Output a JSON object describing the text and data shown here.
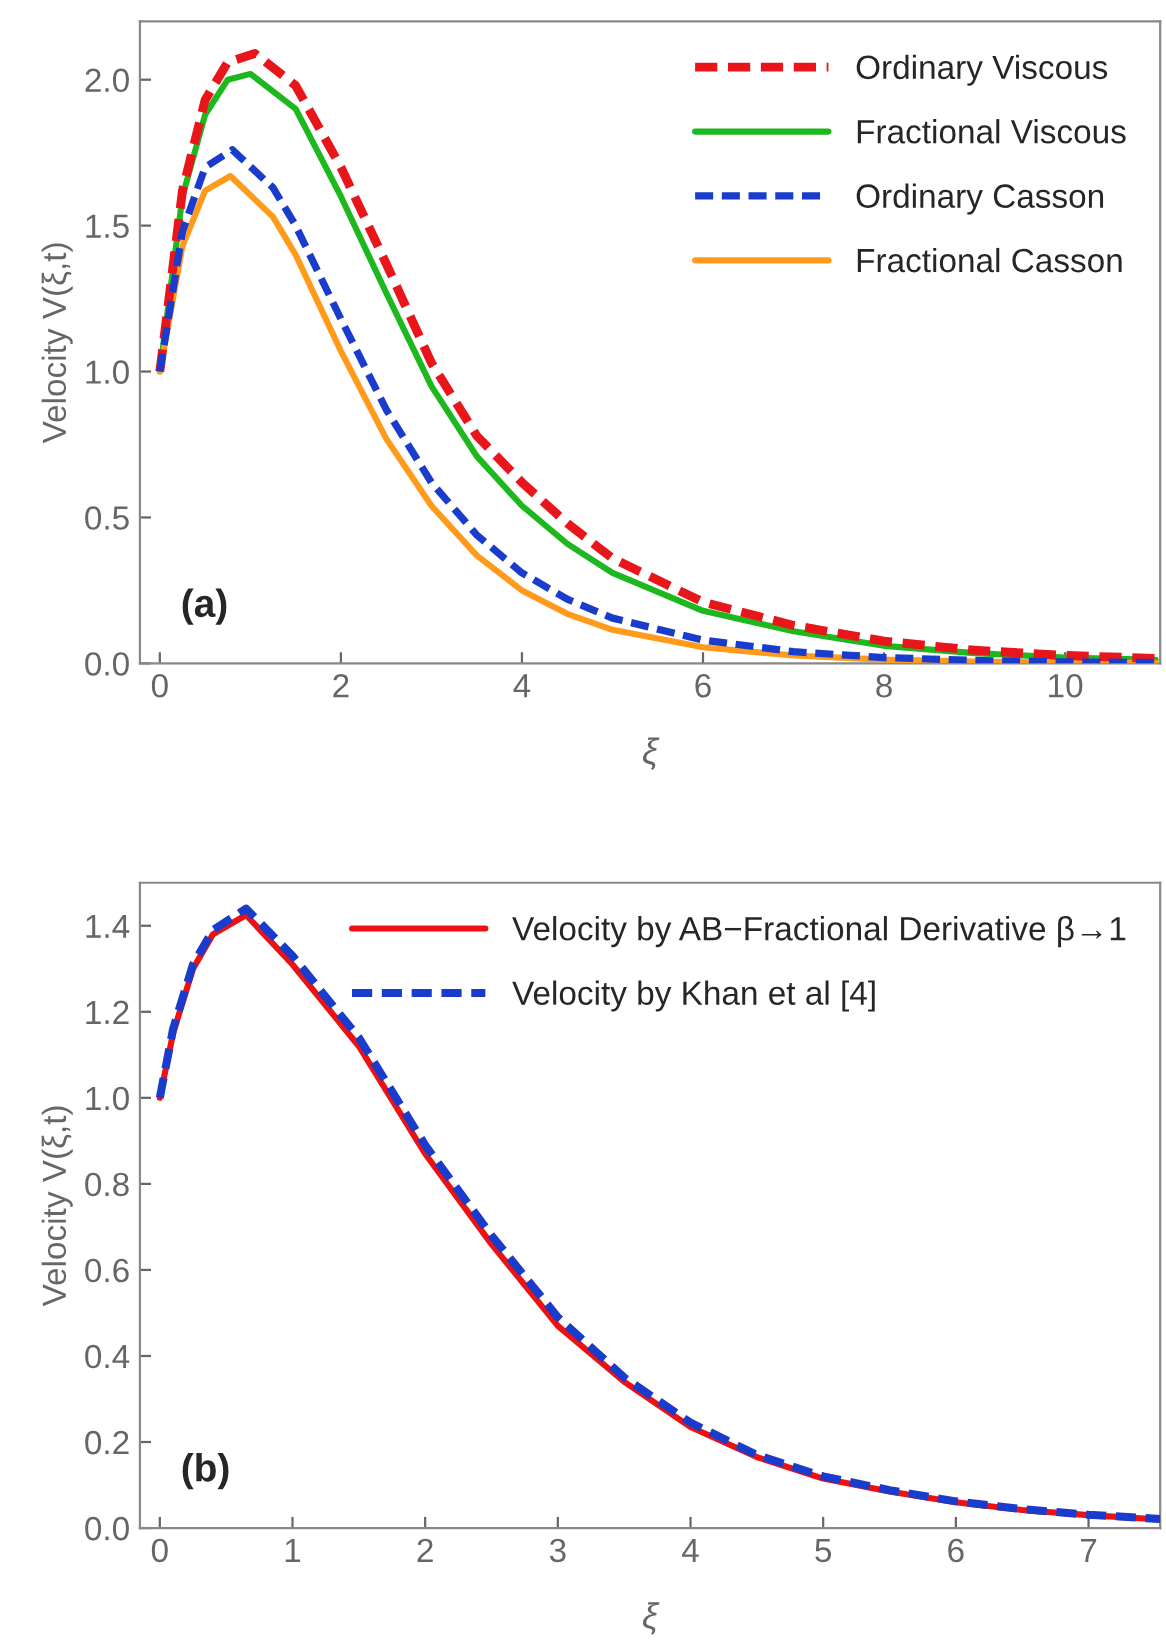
{
  "chart_data": [
    {
      "type": "line",
      "xlabel": "ξ",
      "ylabel": "Velocity V(ξ,t)",
      "annotations": [
        "(a)"
      ],
      "xlim": [
        -0.22,
        11.05
      ],
      "ylim": [
        0,
        2.2
      ],
      "xticks": [
        0,
        2,
        4,
        6,
        8,
        10
      ],
      "yticks": [
        {
          "value": 0,
          "label": "0.0"
        },
        {
          "value": 0.5,
          "label": "0.5"
        },
        {
          "value": 1,
          "label": "1.0"
        },
        {
          "value": 1.5,
          "label": "1.5"
        },
        {
          "value": 2,
          "label": "2.0"
        }
      ],
      "grid": false,
      "legend": "top right",
      "series": [
        {
          "name": "Ordinary Viscous",
          "color": "#e8161b",
          "line_style": "dashed",
          "x": [
            0,
            0.25,
            0.5,
            0.75,
            1.05,
            1.5,
            2,
            2.5,
            3,
            3.5,
            4,
            4.5,
            5,
            6,
            7,
            8,
            9,
            10,
            11
          ],
          "values": [
            1.0,
            1.62,
            1.93,
            2.06,
            2.09,
            1.98,
            1.7,
            1.37,
            1.03,
            0.78,
            0.62,
            0.48,
            0.36,
            0.21,
            0.13,
            0.076,
            0.045,
            0.027,
            0.017
          ]
        },
        {
          "name": "Fractional Viscous",
          "color": "#1db81d",
          "line_style": "solid",
          "x": [
            0,
            0.25,
            0.5,
            0.75,
            1.0,
            1.5,
            2,
            2.5,
            3,
            3.5,
            4,
            4.5,
            5,
            6,
            7,
            8,
            9,
            10,
            11
          ],
          "values": [
            1.0,
            1.6,
            1.88,
            2.0,
            2.02,
            1.9,
            1.6,
            1.27,
            0.95,
            0.71,
            0.54,
            0.41,
            0.31,
            0.18,
            0.11,
            0.06,
            0.035,
            0.02,
            0.012
          ]
        },
        {
          "name": "Ordinary Casson",
          "color": "#1a3ccc",
          "line_style": "dashed",
          "x": [
            0,
            0.25,
            0.5,
            0.8,
            1.25,
            1.5,
            2,
            2.5,
            3,
            3.5,
            4,
            4.5,
            5,
            6,
            7,
            8,
            9,
            10,
            11
          ],
          "values": [
            1.0,
            1.48,
            1.7,
            1.76,
            1.63,
            1.5,
            1.18,
            0.87,
            0.62,
            0.44,
            0.31,
            0.22,
            0.155,
            0.08,
            0.04,
            0.02,
            0.01,
            0.005,
            0.003
          ]
        },
        {
          "name": "Fractional Casson",
          "color": "#ff9a1a",
          "line_style": "solid",
          "x": [
            0,
            0.25,
            0.5,
            0.78,
            1.25,
            1.5,
            2,
            2.5,
            3,
            3.5,
            4,
            4.5,
            5,
            6,
            7,
            8,
            9,
            10,
            11
          ],
          "values": [
            1.0,
            1.43,
            1.62,
            1.67,
            1.53,
            1.4,
            1.07,
            0.77,
            0.54,
            0.37,
            0.25,
            0.17,
            0.115,
            0.055,
            0.027,
            0.013,
            0.006,
            0.003,
            0.002
          ]
        }
      ]
    },
    {
      "type": "line",
      "xlabel": "ξ",
      "ylabel": "Velocity V(ξ,t)",
      "annotations": [
        "(b)"
      ],
      "xlim": [
        -0.15,
        7.54
      ],
      "ylim": [
        0,
        1.5
      ],
      "xticks": [
        0,
        1,
        2,
        3,
        4,
        5,
        6,
        7
      ],
      "yticks": [
        {
          "value": 0,
          "label": "0.0"
        },
        {
          "value": 0.2,
          "label": "0.2"
        },
        {
          "value": 0.4,
          "label": "0.4"
        },
        {
          "value": 0.6,
          "label": "0.6"
        },
        {
          "value": 0.8,
          "label": "0.8"
        },
        {
          "value": 1,
          "label": "1.0"
        },
        {
          "value": 1.2,
          "label": "1.2"
        },
        {
          "value": 1.4,
          "label": "1.4"
        }
      ],
      "grid": false,
      "legend": "top right",
      "series": [
        {
          "name": "Velocity by AB−Fractional Derivative β→1",
          "color": "#ee1111",
          "line_style": "solid",
          "x": [
            0,
            0.1,
            0.25,
            0.4,
            0.65,
            1,
            1.5,
            2,
            2.5,
            3,
            3.5,
            4,
            4.5,
            5,
            5.5,
            6,
            6.5,
            7,
            7.54
          ],
          "values": [
            1.0,
            1.15,
            1.3,
            1.38,
            1.425,
            1.31,
            1.12,
            0.87,
            0.66,
            0.47,
            0.34,
            0.235,
            0.165,
            0.115,
            0.085,
            0.06,
            0.042,
            0.03,
            0.02
          ]
        },
        {
          "name": "Velocity by Khan et al [4]",
          "color": "#1a3ccc",
          "line_style": "dashed",
          "x": [
            0,
            0.1,
            0.25,
            0.4,
            0.65,
            1,
            1.5,
            2,
            2.5,
            3,
            3.5,
            4,
            4.5,
            5,
            5.5,
            6,
            6.5,
            7,
            7.54
          ],
          "values": [
            1.0,
            1.16,
            1.31,
            1.39,
            1.44,
            1.33,
            1.14,
            0.89,
            0.68,
            0.49,
            0.35,
            0.245,
            0.17,
            0.12,
            0.088,
            0.062,
            0.044,
            0.031,
            0.021
          ]
        }
      ]
    }
  ]
}
